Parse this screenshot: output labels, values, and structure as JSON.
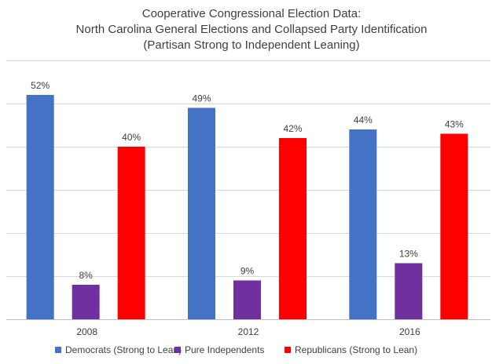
{
  "chart_data": {
    "type": "bar",
    "title": [
      "Cooperative Congressional Election Data:",
      "North Carolina General Elections and Collapsed Party Identification",
      "(Partisan Strong to Independent Leaning)"
    ],
    "categories": [
      "2008",
      "2012",
      "2016"
    ],
    "series": [
      {
        "name": "Democrats (Strong to Lean)",
        "color": "#4472c4",
        "values": [
          52,
          49,
          44
        ],
        "labels": [
          "52%",
          "49%",
          "44%"
        ]
      },
      {
        "name": "Pure Independents",
        "color": "#7030a0",
        "values": [
          8,
          9,
          13
        ],
        "labels": [
          "8%",
          "9%",
          "13%"
        ]
      },
      {
        "name": "Republicans (Strong to Lean)",
        "color": "#ff0000",
        "values": [
          40,
          42,
          43
        ],
        "labels": [
          "40%",
          "42%",
          "43%"
        ]
      }
    ],
    "ylim": [
      0,
      60
    ],
    "y_gridlines": [
      10,
      20,
      30,
      40,
      50,
      60
    ],
    "y_tick_labels_shown": false,
    "xlabel": "",
    "ylabel": "",
    "legend_position": "bottom"
  }
}
